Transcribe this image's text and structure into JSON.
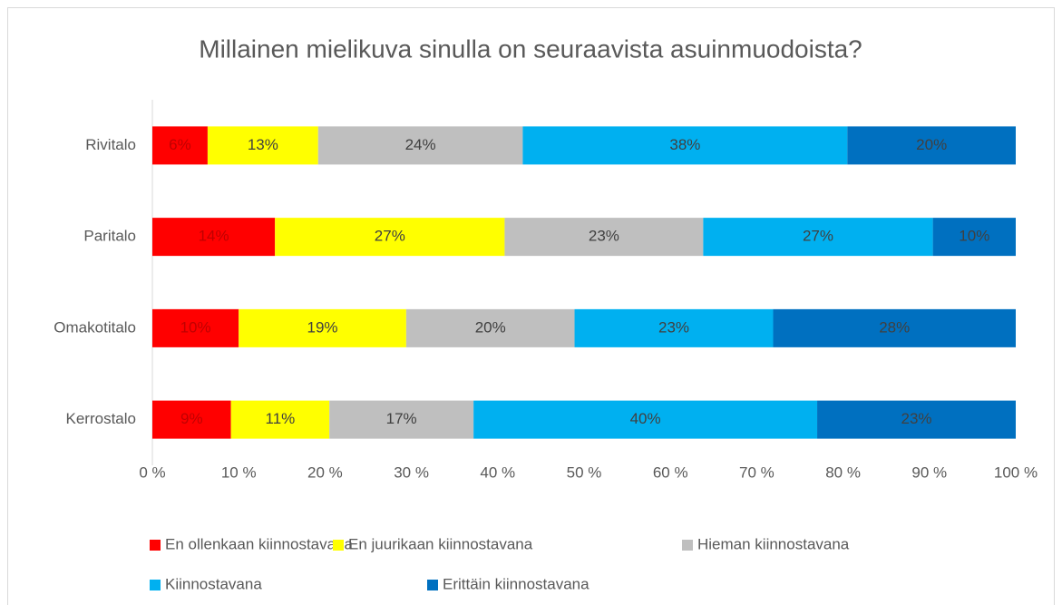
{
  "chart_data": {
    "type": "stacked-barh",
    "title": "Millainen mielikuva sinulla on seuraavista asuinmuodoista?",
    "categories": [
      "Rivitalo",
      "Paritalo",
      "Omakotitalo",
      "Kerrostalo"
    ],
    "series": [
      {
        "name": "En ollenkaan kiinnostavana",
        "color": "#ff0000",
        "values": [
          6.4,
          14.2,
          10.0,
          9.1
        ],
        "value_labels": [
          "6%",
          "14%",
          "10%",
          "9%"
        ]
      },
      {
        "name": "En juurikaan kiinnostavana",
        "color": "#ffff00",
        "values": [
          12.8,
          26.6,
          19.4,
          11.4
        ],
        "value_labels": [
          "13%",
          "27%",
          "19%",
          "11%"
        ]
      },
      {
        "name": "Hieman kiinnostavana",
        "color": "#bfbfbf",
        "values": [
          23.7,
          23.0,
          19.5,
          16.7
        ],
        "value_labels": [
          "24%",
          "23%",
          "20%",
          "17%"
        ]
      },
      {
        "name": "Kiinnostavana",
        "color": "#00b0f0",
        "values": [
          37.6,
          26.6,
          23.0,
          39.8
        ],
        "value_labels": [
          "38%",
          "27%",
          "23%",
          "40%"
        ]
      },
      {
        "name": "Erittäin kiinnostavana",
        "color": "#0070c0",
        "values": [
          19.5,
          9.6,
          28.1,
          23.0
        ],
        "value_labels": [
          "20%",
          "10%",
          "28%",
          "23%"
        ]
      }
    ],
    "xlim": [
      0,
      100
    ],
    "xticks": [
      {
        "value": 0,
        "label": "0 %"
      },
      {
        "value": 10,
        "label": "10 %"
      },
      {
        "value": 20,
        "label": "20 %"
      },
      {
        "value": 30,
        "label": "30 %"
      },
      {
        "value": 40,
        "label": "40 %"
      },
      {
        "value": 50,
        "label": "50 %"
      },
      {
        "value": 60,
        "label": "60 %"
      },
      {
        "value": 70,
        "label": "70 %"
      },
      {
        "value": 80,
        "label": "80 %"
      },
      {
        "value": 90,
        "label": "90 %"
      },
      {
        "value": 100,
        "label": "100 %"
      }
    ],
    "legend": "bottom"
  }
}
